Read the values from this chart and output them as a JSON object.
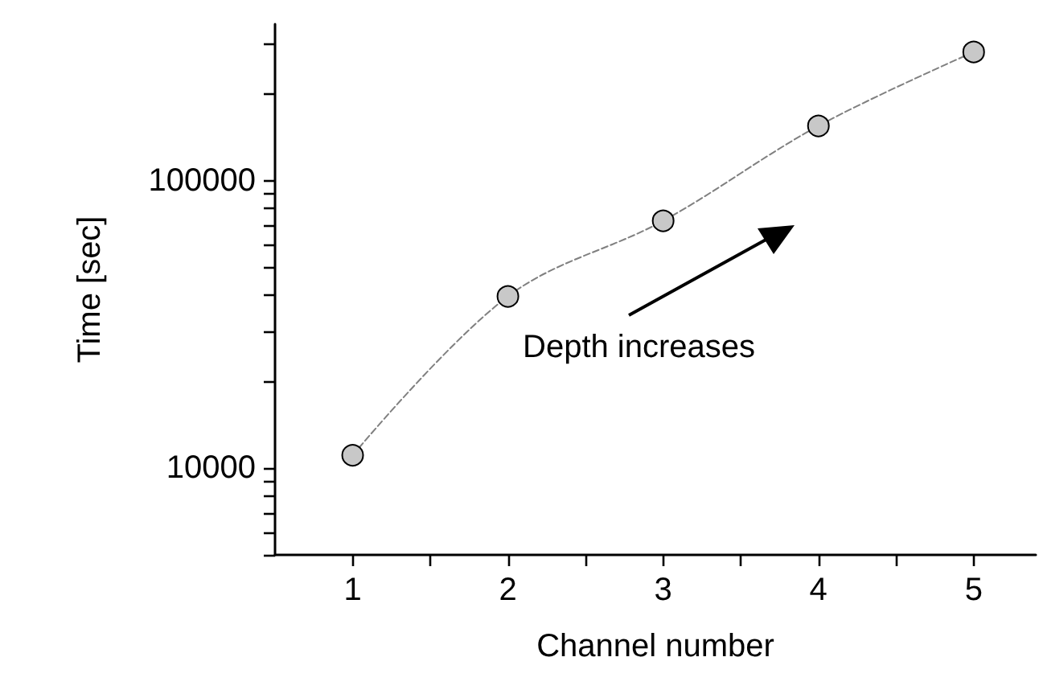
{
  "chart_data": {
    "type": "line",
    "xlabel": "Channel number",
    "ylabel": "Time [sec]",
    "log": "y",
    "x": [
      1,
      2,
      3,
      4,
      5
    ],
    "series": [
      {
        "color": "#c8c8c8",
        "values": [
          11100,
          39600,
          72500,
          155000,
          280000
        ]
      }
    ],
    "xlim": [
      0.5,
      5.4
    ],
    "xticks": [
      1,
      {
        "value": 1.5,
        "label": null
      },
      2,
      {
        "value": 2.5,
        "label": null
      },
      3,
      {
        "value": 3.5,
        "label": null
      },
      4,
      {
        "value": 4.5,
        "label": null
      },
      5
    ],
    "ylim": [
      5000,
      350000
    ],
    "yticks": [
      {
        "value": 5000,
        "label": null
      },
      {
        "value": 6000,
        "label": null
      },
      {
        "value": 7000,
        "label": null
      },
      {
        "value": 8000,
        "label": null
      },
      {
        "value": 9000,
        "label": null
      },
      10000,
      {
        "value": 20000,
        "label": null
      },
      {
        "value": 30000,
        "label": null
      },
      {
        "value": 40000,
        "label": null
      },
      {
        "value": 50000,
        "label": null
      },
      {
        "value": 60000,
        "label": null
      },
      {
        "value": 70000,
        "label": null
      },
      {
        "value": 80000,
        "label": null
      },
      {
        "value": 90000,
        "label": null
      },
      100000,
      {
        "value": 200000,
        "label": null
      },
      {
        "value": 300000,
        "label": null
      }
    ],
    "grid": false,
    "marker": "circle",
    "line_style": "dashed",
    "annotations": [
      "Depth increases"
    ]
  }
}
